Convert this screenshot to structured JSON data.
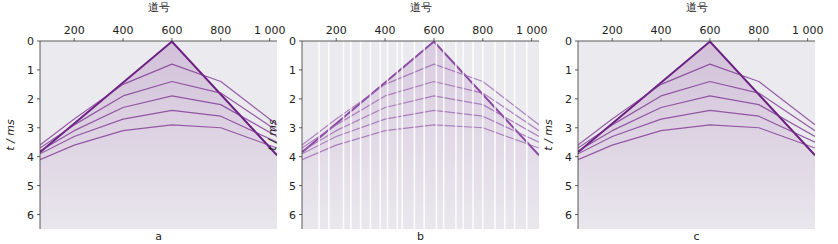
{
  "chart_data": [
    {
      "type": "line",
      "caption": "a",
      "xlabel": "道号",
      "ylabel": "t / ms",
      "xlim": [
        60,
        1030
      ],
      "ylim": [
        0,
        6.5
      ],
      "xticks": [
        200,
        400,
        600,
        800,
        {
          "value": 1000,
          "label": "1 000"
        }
      ],
      "yticks": [
        0,
        1,
        2,
        3,
        4,
        5,
        6
      ],
      "grid": false,
      "color": "#7a2d8f",
      "series": [
        {
          "color": "#6b1f82",
          "x": [
            60,
            600,
            1030
          ],
          "values": [
            3.85,
            0.02,
            3.95
          ]
        },
        {
          "color": "#7a2d8f",
          "x": [
            60,
            200,
            400,
            600,
            800,
            1030
          ],
          "values": [
            3.6,
            2.7,
            1.5,
            0.8,
            1.4,
            2.9
          ]
        },
        {
          "color": "#7a2d8f",
          "x": [
            60,
            200,
            400,
            600,
            800,
            1030
          ],
          "values": [
            3.7,
            2.9,
            1.9,
            1.4,
            1.8,
            3.1
          ]
        },
        {
          "color": "#7a2d8f",
          "x": [
            60,
            200,
            400,
            600,
            800,
            1030
          ],
          "values": [
            3.8,
            3.1,
            2.3,
            1.9,
            2.2,
            3.3
          ]
        },
        {
          "color": "#7a2d8f",
          "x": [
            60,
            200,
            400,
            600,
            800,
            1030
          ],
          "values": [
            3.9,
            3.3,
            2.7,
            2.4,
            2.6,
            3.5
          ]
        },
        {
          "color": "#7a2d8f",
          "x": [
            60,
            200,
            400,
            600,
            800,
            1030
          ],
          "values": [
            4.1,
            3.6,
            3.1,
            2.9,
            3.0,
            3.7
          ]
        }
      ]
    },
    {
      "type": "line",
      "caption": "b",
      "xlabel": "道号",
      "ylabel": "t / ms",
      "xlim": [
        60,
        1030
      ],
      "ylim": [
        0,
        6.5
      ],
      "xticks": [
        200,
        400,
        600,
        800,
        {
          "value": 1000,
          "label": "1 000"
        }
      ],
      "yticks": [
        0,
        1,
        2,
        3,
        4,
        5,
        6
      ],
      "grid": false,
      "color": "#9a5fb0",
      "missing_traces": [
        130,
        170,
        230,
        260,
        300,
        340,
        380,
        410,
        450,
        470,
        520,
        560,
        610,
        640,
        690,
        720,
        760,
        800,
        850,
        890,
        930,
        980
      ],
      "series": [
        {
          "color": "#8a4aa3",
          "x": [
            60,
            600,
            1030
          ],
          "values": [
            3.85,
            0.02,
            3.95
          ]
        },
        {
          "color": "#9a5fb0",
          "x": [
            60,
            200,
            400,
            600,
            800,
            1030
          ],
          "values": [
            3.6,
            2.7,
            1.5,
            0.8,
            1.4,
            2.9
          ]
        },
        {
          "color": "#9a5fb0",
          "x": [
            60,
            200,
            400,
            600,
            800,
            1030
          ],
          "values": [
            3.7,
            2.9,
            1.9,
            1.4,
            1.8,
            3.1
          ]
        },
        {
          "color": "#9a5fb0",
          "x": [
            60,
            200,
            400,
            600,
            800,
            1030
          ],
          "values": [
            3.8,
            3.1,
            2.3,
            1.9,
            2.2,
            3.3
          ]
        },
        {
          "color": "#9a5fb0",
          "x": [
            60,
            200,
            400,
            600,
            800,
            1030
          ],
          "values": [
            3.9,
            3.3,
            2.7,
            2.4,
            2.6,
            3.5
          ]
        },
        {
          "color": "#9a5fb0",
          "x": [
            60,
            200,
            400,
            600,
            800,
            1030
          ],
          "values": [
            4.1,
            3.6,
            3.1,
            2.9,
            3.0,
            3.7
          ]
        }
      ]
    },
    {
      "type": "line",
      "caption": "c",
      "xlabel": "道号",
      "ylabel": "t / ms",
      "xlim": [
        60,
        1030
      ],
      "ylim": [
        0,
        6.5
      ],
      "xticks": [
        200,
        400,
        600,
        800,
        {
          "value": 1000,
          "label": "1 000"
        }
      ],
      "yticks": [
        0,
        1,
        2,
        3,
        4,
        5,
        6
      ],
      "grid": false,
      "color": "#7a2d8f",
      "series": [
        {
          "color": "#6b1f82",
          "x": [
            60,
            600,
            1030
          ],
          "values": [
            3.85,
            0.02,
            3.95
          ]
        },
        {
          "color": "#7a2d8f",
          "x": [
            60,
            200,
            400,
            600,
            800,
            1030
          ],
          "values": [
            3.6,
            2.7,
            1.5,
            0.8,
            1.4,
            2.9
          ]
        },
        {
          "color": "#7a2d8f",
          "x": [
            60,
            200,
            400,
            600,
            800,
            1030
          ],
          "values": [
            3.7,
            2.9,
            1.9,
            1.4,
            1.8,
            3.1
          ]
        },
        {
          "color": "#7a2d8f",
          "x": [
            60,
            200,
            400,
            600,
            800,
            1030
          ],
          "values": [
            3.8,
            3.1,
            2.3,
            1.9,
            2.2,
            3.3
          ]
        },
        {
          "color": "#7a2d8f",
          "x": [
            60,
            200,
            400,
            600,
            800,
            1030
          ],
          "values": [
            3.9,
            3.3,
            2.7,
            2.4,
            2.6,
            3.5
          ]
        },
        {
          "color": "#7a2d8f",
          "x": [
            60,
            200,
            400,
            600,
            800,
            1030
          ],
          "values": [
            4.1,
            3.6,
            3.1,
            2.9,
            3.0,
            3.7
          ]
        }
      ]
    }
  ]
}
